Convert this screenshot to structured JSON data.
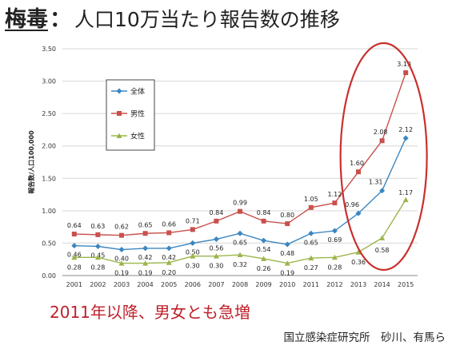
{
  "title": {
    "bold": "梅毒",
    "colon": "：",
    "main": "人口10万当たり報告数の推移"
  },
  "chart_data": {
    "type": "line",
    "title": "",
    "xlabel": "",
    "ylabel": "報告数/人口100,000",
    "categories": [
      "2001",
      "2002",
      "2003",
      "2004",
      "2005",
      "2006",
      "2007",
      "2008",
      "2009",
      "2010",
      "2011",
      "2012",
      "2013",
      "2014",
      "2015"
    ],
    "ylim": [
      0,
      3.5
    ],
    "yticks": [
      "0.00",
      "0.50",
      "1.00",
      "1.50",
      "2.00",
      "2.50",
      "3.00",
      "3.50"
    ],
    "grid": true,
    "legend_position": "top-left",
    "series": [
      {
        "name": "全体",
        "color": "#3a86c0",
        "marker": "diamond",
        "values": [
          0.46,
          0.45,
          0.4,
          0.42,
          0.42,
          0.5,
          0.56,
          0.65,
          0.54,
          0.48,
          0.65,
          0.69,
          0.96,
          1.31,
          2.12
        ],
        "labels": [
          "0.46",
          "0.45",
          "0.40",
          "0.42",
          "0.42",
          "0.50",
          "0.56",
          "0.65",
          "0.54",
          "0.48",
          "0.65",
          "0.69",
          "0.96",
          "1.31",
          "2.12"
        ]
      },
      {
        "name": "男性",
        "color": "#c9504c",
        "marker": "square",
        "values": [
          0.64,
          0.63,
          0.62,
          0.65,
          0.66,
          0.71,
          0.84,
          0.99,
          0.84,
          0.8,
          1.05,
          1.12,
          1.6,
          2.08,
          3.13
        ],
        "labels": [
          "0.64",
          "0.63",
          "0.62",
          "0.65",
          "0.66",
          "0.71",
          "0.84",
          "0.99",
          "0.84",
          "0.80",
          "1.05",
          "1.12",
          "1.60",
          "2.08",
          "3.13"
        ]
      },
      {
        "name": "女性",
        "color": "#9bb54a",
        "marker": "triangle",
        "values": [
          0.28,
          0.28,
          0.19,
          0.19,
          0.2,
          0.3,
          0.3,
          0.32,
          0.26,
          0.19,
          0.27,
          0.28,
          0.36,
          0.58,
          1.17
        ],
        "labels": [
          "0.28",
          "0.28",
          "0.19",
          "0.19",
          "0.20",
          "0.30",
          "0.30",
          "0.32",
          "0.26",
          "0.19",
          "0.27",
          "0.28",
          "0.36",
          "0.58",
          "1.17"
        ]
      }
    ],
    "highlight_color": "#c9302c"
  },
  "note": "2011年以降、男女とも急増",
  "source": "国立感染症研究所　砂川、有馬ら"
}
